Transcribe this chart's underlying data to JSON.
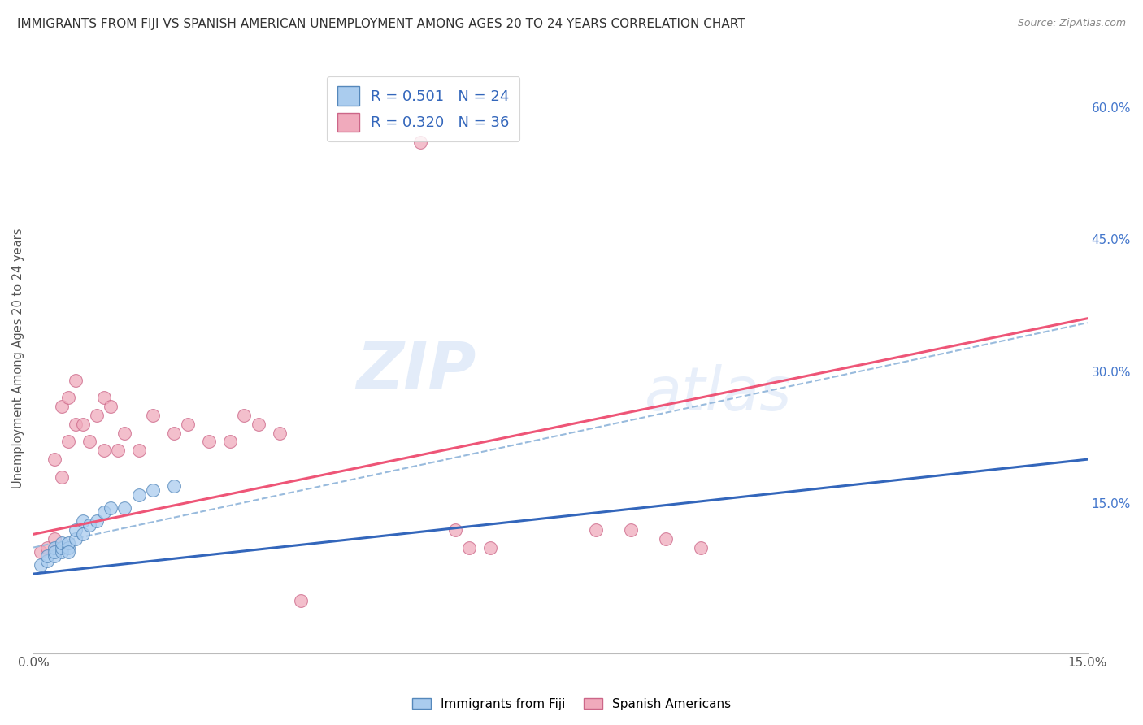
{
  "title": "IMMIGRANTS FROM FIJI VS SPANISH AMERICAN UNEMPLOYMENT AMONG AGES 20 TO 24 YEARS CORRELATION CHART",
  "source": "Source: ZipAtlas.com",
  "ylabel": "Unemployment Among Ages 20 to 24 years",
  "xlim": [
    0.0,
    0.15
  ],
  "ylim": [
    -0.02,
    0.65
  ],
  "yticks_right": [
    0.15,
    0.3,
    0.45,
    0.6
  ],
  "ytick_labels_right": [
    "15.0%",
    "30.0%",
    "45.0%",
    "60.0%"
  ],
  "fiji_R": 0.501,
  "fiji_N": 24,
  "spanish_R": 0.32,
  "spanish_N": 36,
  "fiji_color": "#aaccee",
  "fiji_edge_color": "#5588bb",
  "spanish_color": "#f0aabc",
  "spanish_edge_color": "#cc6688",
  "fiji_line_color": "#3366bb",
  "spanish_line_color": "#ee5577",
  "dashed_line_color": "#99bbdd",
  "background_color": "#ffffff",
  "grid_color": "#dddddd",
  "watermark_top": "ZIP",
  "watermark_bot": "atlas",
  "fiji_dots_x": [
    0.001,
    0.002,
    0.002,
    0.003,
    0.003,
    0.003,
    0.004,
    0.004,
    0.004,
    0.005,
    0.005,
    0.005,
    0.006,
    0.006,
    0.007,
    0.007,
    0.008,
    0.009,
    0.01,
    0.011,
    0.013,
    0.015,
    0.017,
    0.02
  ],
  "fiji_dots_y": [
    0.08,
    0.085,
    0.09,
    0.09,
    0.1,
    0.095,
    0.095,
    0.1,
    0.105,
    0.1,
    0.105,
    0.095,
    0.11,
    0.12,
    0.115,
    0.13,
    0.125,
    0.13,
    0.14,
    0.145,
    0.145,
    0.16,
    0.165,
    0.17
  ],
  "spanish_dots_x": [
    0.001,
    0.002,
    0.003,
    0.003,
    0.004,
    0.004,
    0.005,
    0.005,
    0.006,
    0.006,
    0.007,
    0.008,
    0.009,
    0.01,
    0.01,
    0.011,
    0.012,
    0.013,
    0.015,
    0.017,
    0.02,
    0.022,
    0.025,
    0.028,
    0.03,
    0.032,
    0.035,
    0.038,
    0.055,
    0.06,
    0.062,
    0.065,
    0.08,
    0.085,
    0.09,
    0.095
  ],
  "spanish_dots_y": [
    0.095,
    0.1,
    0.11,
    0.2,
    0.18,
    0.26,
    0.22,
    0.27,
    0.24,
    0.29,
    0.24,
    0.22,
    0.25,
    0.27,
    0.21,
    0.26,
    0.21,
    0.23,
    0.21,
    0.25,
    0.23,
    0.24,
    0.22,
    0.22,
    0.25,
    0.24,
    0.23,
    0.04,
    0.56,
    0.12,
    0.1,
    0.1,
    0.12,
    0.12,
    0.11,
    0.1
  ],
  "fiji_line_x0": 0.0,
  "fiji_line_x1": 0.15,
  "fiji_line_y0": 0.07,
  "fiji_line_y1": 0.2,
  "spanish_line_x0": 0.0,
  "spanish_line_x1": 0.15,
  "spanish_line_y0": 0.115,
  "spanish_line_y1": 0.36,
  "dash_line_x0": 0.0,
  "dash_line_x1": 0.15,
  "dash_line_y0": 0.1,
  "dash_line_y1": 0.355
}
